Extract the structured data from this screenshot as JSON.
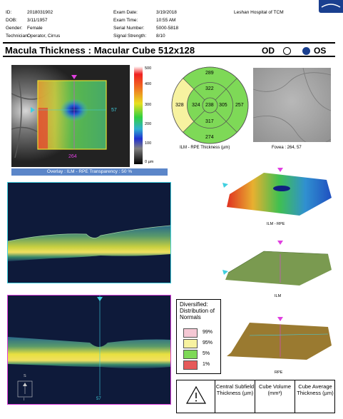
{
  "header": {
    "id_label": "ID:",
    "id_value": "2018031902",
    "dob_label": "DOB:",
    "dob_value": "3/11/1957",
    "gender_label": "Gender:",
    "gender_value": "Female",
    "tech_label": "Technician:",
    "tech_value": "Operator, Cirrus",
    "exam_date_label": "Exam Date:",
    "exam_date_value": "3/19/2018",
    "exam_time_label": "Exam Time:",
    "exam_time_value": "10:55 AM",
    "serial_label": "Serial Number:",
    "serial_value": "5000-5818",
    "signal_label": "Signal Strength:",
    "signal_value": "8/10",
    "hospital": "Leshan Hospital of TCM"
  },
  "title": {
    "text": "Macula Thickness : Macular Cube 512x128",
    "od_label": "OD",
    "os_label": "OS",
    "selected_eye": "OS"
  },
  "fundus": {
    "marker_value": "57",
    "bottom_value": "264",
    "overlay_caption": "Overlay : ILM - RPE  Transparency : 50 %"
  },
  "colorscale": {
    "ticks": [
      "500",
      "400",
      "300",
      "200",
      "100",
      "0 µm"
    ]
  },
  "etdrs": {
    "outer_top": "289",
    "outer_left": "328",
    "outer_right": "257",
    "outer_bottom": "274",
    "inner_top": "322",
    "inner_left": "324",
    "inner_right": "305",
    "inner_bottom": "317",
    "center": "238",
    "caption": "ILM - RPE Thickness (µm)"
  },
  "fovea": {
    "caption": "Fovea : 264, 57"
  },
  "surfaces": {
    "ilm_rpe_label": "ILM - RPE",
    "ilm_label": "ILM",
    "rpe_label": "RPE"
  },
  "bscan2": {
    "bottom_value": "57",
    "corner_s": "S",
    "corner_i": "I"
  },
  "legend": {
    "title": "Diversified: Distribution of Normals",
    "rows": [
      {
        "label": "99%",
        "color": "#f5c8d4"
      },
      {
        "label": "95%",
        "color": "#f7f2a0"
      },
      {
        "label": "5%",
        "color": "#7ed957"
      },
      {
        "label": "1%",
        "color": "#e65a5a"
      }
    ]
  },
  "summary": {
    "warn_icon": "warning-icon",
    "col1": "Central Subfield Thickness (µm)",
    "col2": "Cube Volume (mm³)",
    "col3": "Cube Average Thickness (µm)"
  }
}
